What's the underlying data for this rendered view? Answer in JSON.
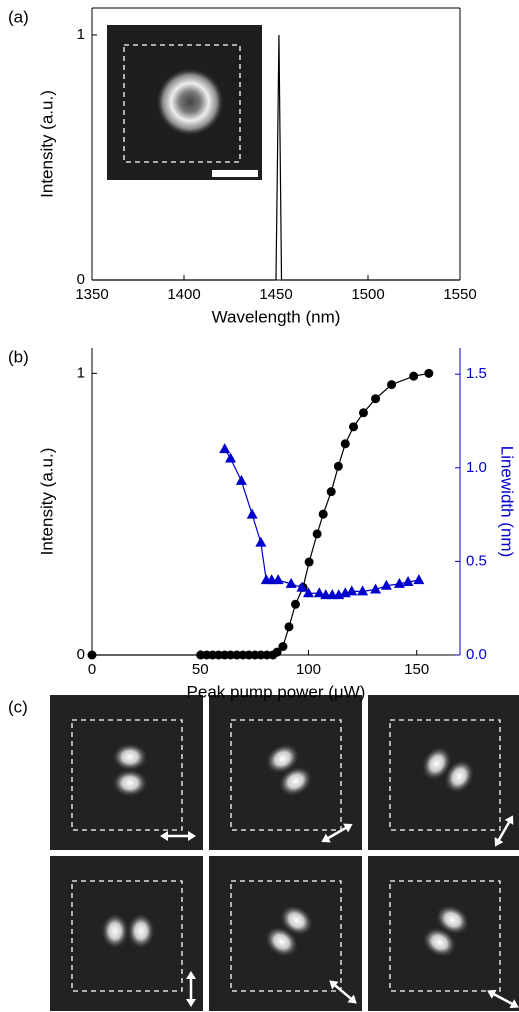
{
  "chart_data": [
    {
      "type": "line",
      "label": "(a)",
      "x_label": "Wavelength (nm)",
      "y_label": "Intensity (a.u.)",
      "xlim": [
        1350,
        1550
      ],
      "xticks": [
        1350,
        1400,
        1450,
        1500,
        1550
      ],
      "ylim": [
        0,
        1.11
      ],
      "yticks": [
        0,
        1
      ],
      "series": [
        {
          "color": "#000000",
          "x": [
            1350,
            1450,
            1451.6,
            1453,
            1550
          ],
          "values": [
            0,
            0,
            1,
            0,
            0
          ]
        }
      ]
    },
    {
      "type": "line",
      "label": "(b)",
      "x_label": "Peak pump power (μW)",
      "y_label": "Intensity (a.u.)",
      "y2_label": "Linewidth (nm)",
      "y2_color": "#0000cc",
      "xlim": [
        0,
        170
      ],
      "xticks": [
        0,
        50,
        100,
        150
      ],
      "ylim": [
        0,
        1.09
      ],
      "yticks": [
        0,
        1
      ],
      "y2lim": [
        0,
        1.64
      ],
      "y2ticks": [
        {
          "value": 0,
          "label": "0.0"
        },
        {
          "value": 0.5,
          "label": "0.5"
        },
        {
          "value": 1,
          "label": "1.0"
        },
        {
          "value": 1.5,
          "label": "1.5"
        }
      ],
      "series": [
        {
          "color": "#000000",
          "marker": "circle",
          "x": [
            0,
            50.2,
            53,
            55.7,
            58.5,
            61.3,
            64,
            66.9,
            69.7,
            72.5,
            75.3,
            78,
            80.8,
            83.6,
            85.5,
            88.2,
            91,
            94,
            97.5,
            100.3,
            104,
            106.8,
            110.5,
            113.8,
            117,
            120.8,
            125.4,
            131,
            138.4,
            148.6,
            155.6
          ],
          "values": [
            0,
            0,
            0,
            0,
            0,
            0,
            0,
            0,
            0,
            0,
            0,
            0,
            0,
            0,
            0.01,
            0.03,
            0.1,
            0.18,
            0.24,
            0.33,
            0.43,
            0.5,
            0.58,
            0.67,
            0.75,
            0.81,
            0.86,
            0.91,
            0.96,
            0.99,
            1
          ]
        },
        {
          "color": "#0000cc",
          "marker": "triangle",
          "axis": "y2",
          "x": [
            61.3,
            64,
            69,
            74,
            78,
            80.5,
            83,
            86,
            92,
            97,
            100,
            105,
            108,
            111,
            114,
            117,
            120,
            125,
            131,
            136,
            142,
            146,
            151
          ],
          "values": [
            1.1,
            1.05,
            0.93,
            0.75,
            0.6,
            0.4,
            0.4,
            0.4,
            0.38,
            0.36,
            0.33,
            0.33,
            0.32,
            0.32,
            0.32,
            0.33,
            0.34,
            0.34,
            0.35,
            0.37,
            0.38,
            0.39,
            0.4
          ]
        }
      ]
    }
  ],
  "panel_c": {
    "label": "(c)"
  }
}
